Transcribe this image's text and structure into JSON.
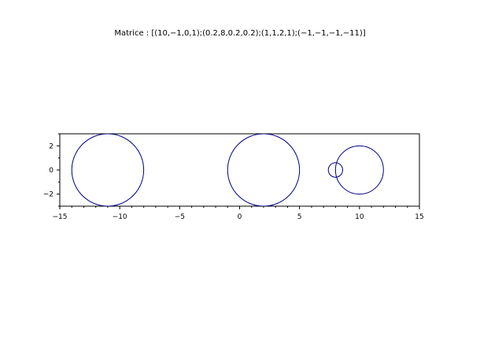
{
  "chart_data": {
    "type": "scatter",
    "title": "Matrice : [(10,−1,0,1);(0.2,8,0.2,0.2);(1,1,2,1);(−1,−1,−1,−11)]",
    "xlabel": "",
    "ylabel": "",
    "xlim": [
      -15,
      15
    ],
    "ylim": [
      -3,
      3
    ],
    "grid": false,
    "x_ticks": [
      -15,
      -10,
      -5,
      0,
      5,
      10,
      15
    ],
    "x_tick_labels": [
      "−15",
      "−10",
      "−5",
      "0",
      "5",
      "10",
      "15"
    ],
    "y_ticks": [
      -2,
      0,
      2
    ],
    "y_tick_labels": [
      "−2",
      "0",
      "2"
    ],
    "circles": [
      {
        "center": [
          10,
          0
        ],
        "radius": 2
      },
      {
        "center": [
          8,
          0
        ],
        "radius": 0.6
      },
      {
        "center": [
          2,
          0
        ],
        "radius": 3
      },
      {
        "center": [
          -11,
          0
        ],
        "radius": 3
      }
    ],
    "stroke_color": "#00008b"
  }
}
